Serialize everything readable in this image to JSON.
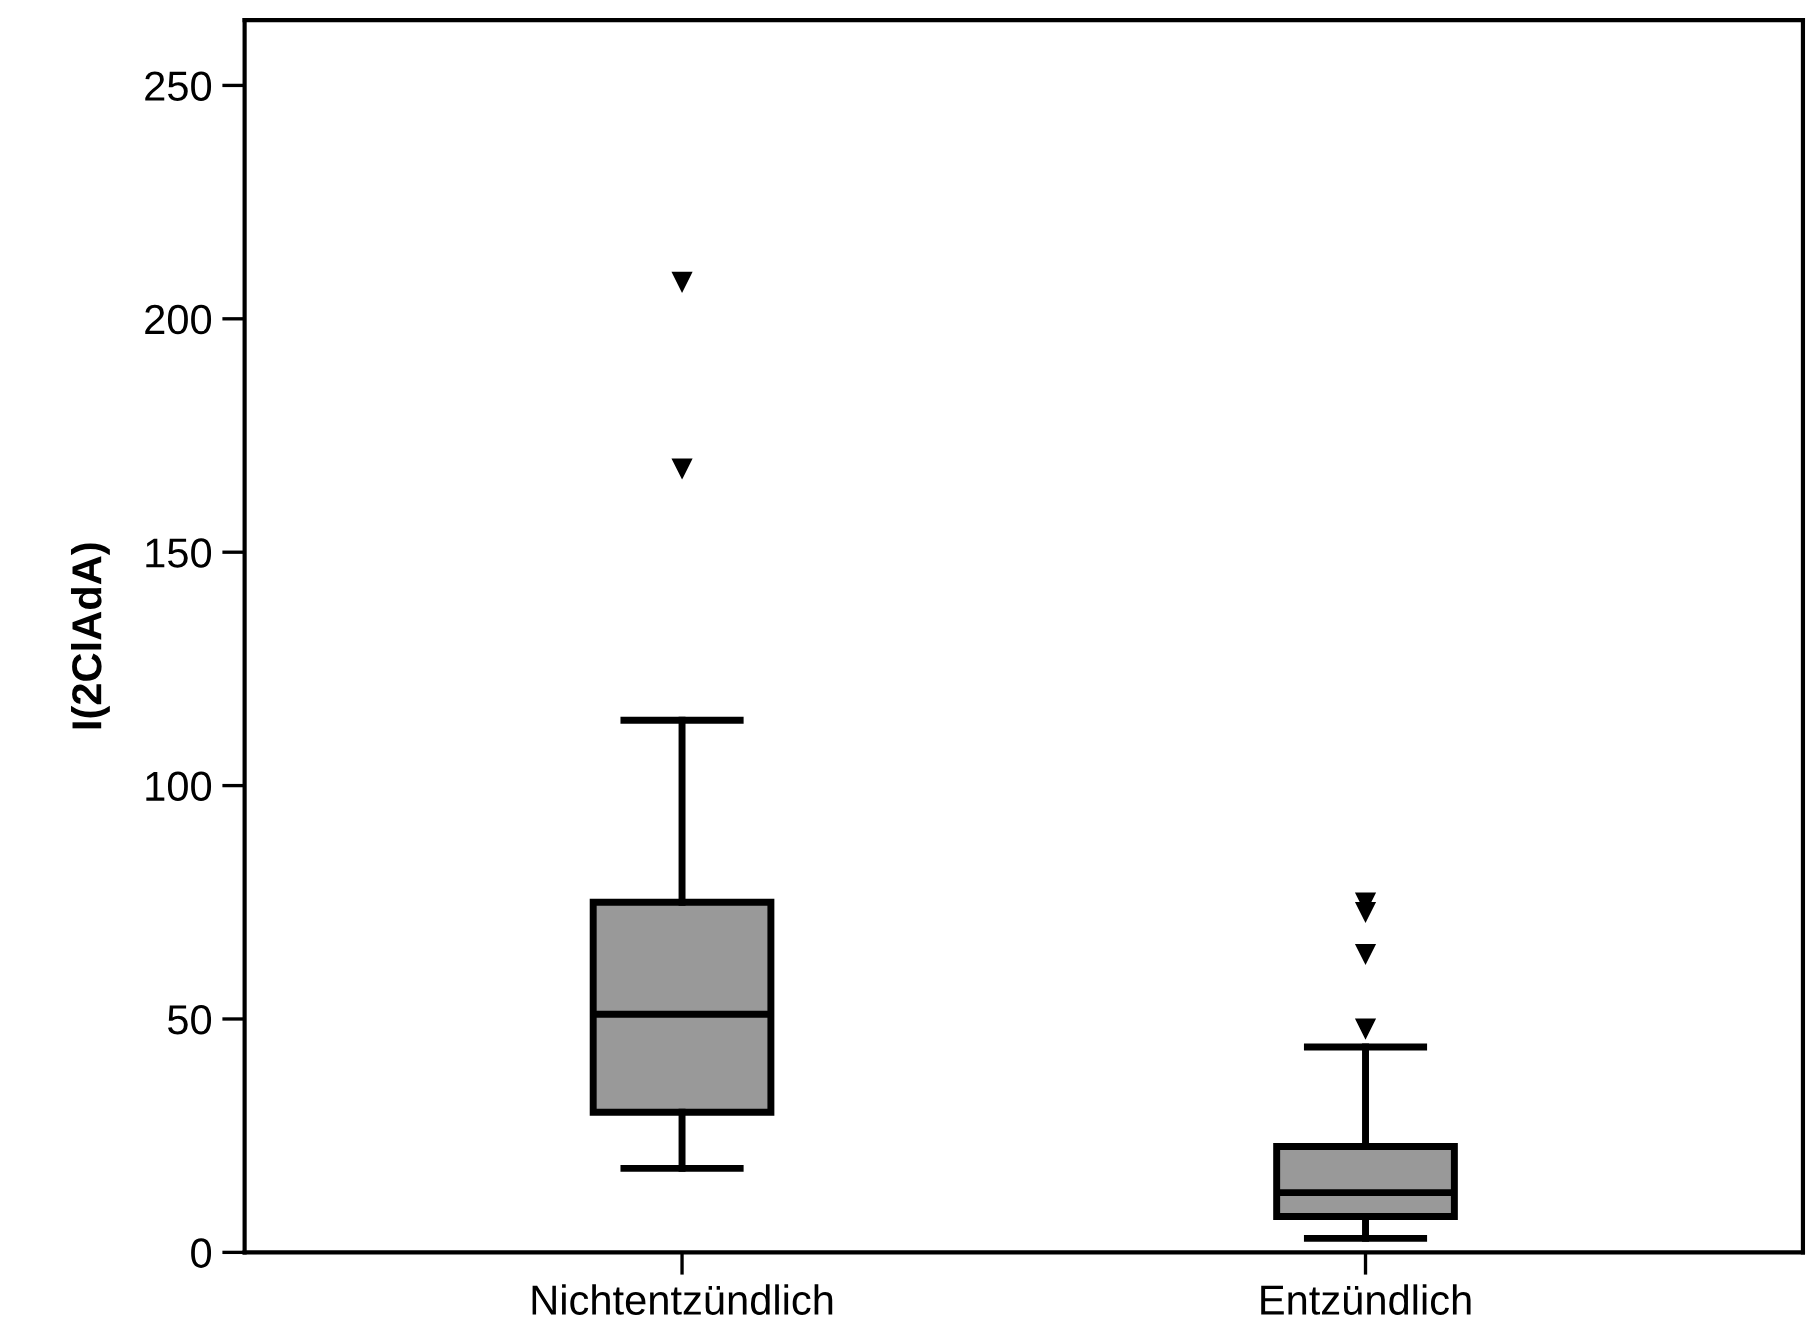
{
  "chart_data": {
    "type": "box",
    "ylabel": "I(2ClAdA)",
    "categories": [
      "Nichtentzündlich",
      "Entzündlich"
    ],
    "boxes": [
      {
        "low": 18,
        "q1": 30,
        "median": 51,
        "q3": 75,
        "high": 114,
        "outliers": [
          168,
          208
        ]
      },
      {
        "low": 3,
        "q1": 7.7,
        "median": 12.8,
        "q3": 22.7,
        "high": 44,
        "outliers": [
          48,
          64,
          73,
          75
        ]
      }
    ],
    "color": "#999999",
    "ylim": [
      0,
      264
    ],
    "yticks": [
      0,
      50,
      100,
      150,
      200,
      250
    ],
    "grid": false,
    "marker": "triangle"
  }
}
